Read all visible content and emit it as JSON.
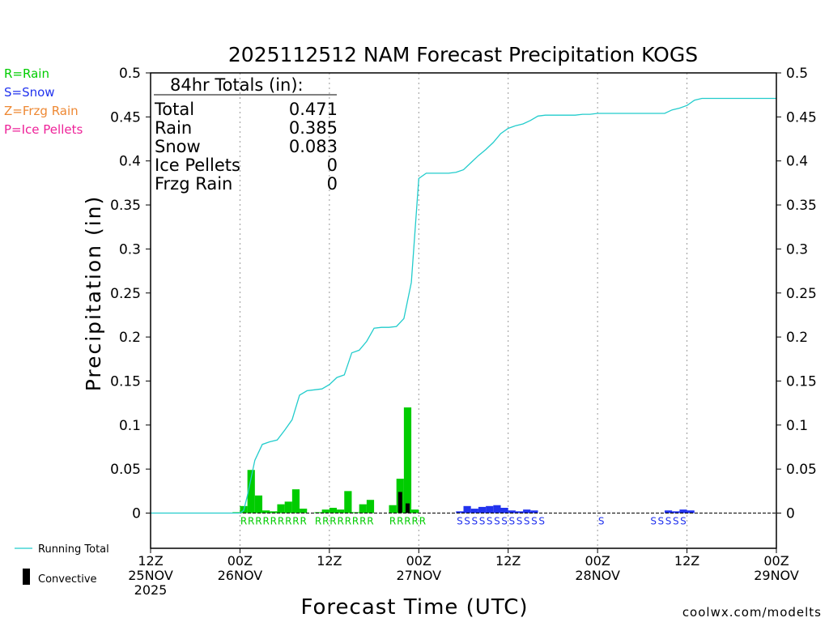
{
  "colors": {
    "rain": "#00cc00",
    "snow": "#2233ee",
    "frzg": "#ee8833",
    "ice": "#ee2299",
    "total": "#22cccc",
    "convective": "#000000",
    "credit": "#dd2222"
  },
  "chart_data": {
    "type": "bar",
    "title": "2025112512 NAM Forecast Precipitation KOGS",
    "ylabel": "Precipitation (in)",
    "xlabel": "Forecast Time (UTC)",
    "ylim": [
      -0.04,
      0.5
    ],
    "xlim_hours": [
      0,
      84
    ],
    "yticks": [
      {
        "v": 0.5,
        "label": "0.5"
      },
      {
        "v": 0.45,
        "label": "0.45"
      },
      {
        "v": 0.4,
        "label": "0.4"
      },
      {
        "v": 0.35,
        "label": "0.35"
      },
      {
        "v": 0.3,
        "label": "0.3"
      },
      {
        "v": 0.25,
        "label": "0.25"
      },
      {
        "v": 0.2,
        "label": "0.2"
      },
      {
        "v": 0.15,
        "label": "0.15"
      },
      {
        "v": 0.1,
        "label": "0.1"
      },
      {
        "v": 0.05,
        "label": "0.05"
      },
      {
        "v": 0,
        "label": "0"
      }
    ],
    "xticks": [
      {
        "h": 0,
        "lines": [
          "12Z",
          "25NOV",
          "2025"
        ]
      },
      {
        "h": 12,
        "lines": [
          "00Z",
          "26NOV"
        ]
      },
      {
        "h": 24,
        "lines": [
          "12Z"
        ]
      },
      {
        "h": 36,
        "lines": [
          "00Z",
          "27NOV"
        ]
      },
      {
        "h": 48,
        "lines": [
          "12Z"
        ]
      },
      {
        "h": 60,
        "lines": [
          "00Z",
          "28NOV"
        ]
      },
      {
        "h": 72,
        "lines": [
          "12Z"
        ]
      },
      {
        "h": 84,
        "lines": [
          "00Z",
          "29NOV"
        ]
      }
    ],
    "legend_left": [
      {
        "label": "R=Rain",
        "color": "#00cc00"
      },
      {
        "label": "S=Snow",
        "color": "#2233ee"
      },
      {
        "label": "Z=Frzg Rain",
        "color": "#ee8833"
      },
      {
        "label": "P=Ice Pellets",
        "color": "#ee2299"
      }
    ],
    "legend_bottom": [
      {
        "label": "Running Total"
      },
      {
        "label": "Convective"
      }
    ],
    "totals": {
      "header": "84hr Totals (in):",
      "rows": [
        {
          "label": "Total",
          "value": "0.471"
        },
        {
          "label": "Rain",
          "value": "0.385"
        },
        {
          "label": "Snow",
          "value": "0.083"
        },
        {
          "label": "Ice Pellets",
          "value": "0"
        },
        {
          "label": "Frzg Rain",
          "value": "0"
        }
      ]
    },
    "hourly_precip": [
      {
        "h": 12,
        "type": "rain",
        "v": 0.001
      },
      {
        "h": 13,
        "type": "rain",
        "v": 0.008
      },
      {
        "h": 14,
        "type": "rain",
        "v": 0.049
      },
      {
        "h": 15,
        "type": "rain",
        "v": 0.02
      },
      {
        "h": 16,
        "type": "rain",
        "v": 0.003
      },
      {
        "h": 17,
        "type": "rain",
        "v": 0.002
      },
      {
        "h": 18,
        "type": "rain",
        "v": 0.01
      },
      {
        "h": 19,
        "type": "rain",
        "v": 0.013
      },
      {
        "h": 20,
        "type": "rain",
        "v": 0.027
      },
      {
        "h": 21,
        "type": "rain",
        "v": 0.005
      },
      {
        "h": 23,
        "type": "rain",
        "v": 0.001
      },
      {
        "h": 24,
        "type": "rain",
        "v": 0.004
      },
      {
        "h": 25,
        "type": "rain",
        "v": 0.006
      },
      {
        "h": 26,
        "type": "rain",
        "v": 0.004
      },
      {
        "h": 27,
        "type": "rain",
        "v": 0.025
      },
      {
        "h": 28,
        "type": "rain",
        "v": 0.001
      },
      {
        "h": 29,
        "type": "rain",
        "v": 0.01
      },
      {
        "h": 30,
        "type": "rain",
        "v": 0.015
      },
      {
        "h": 33,
        "type": "rain",
        "v": 0.009
      },
      {
        "h": 34,
        "type": "rain",
        "v": 0.039
      },
      {
        "h": 35,
        "type": "rain",
        "v": 0.12
      },
      {
        "h": 36,
        "type": "rain",
        "v": 0.004
      },
      {
        "h": 42,
        "type": "snow",
        "v": 0.002
      },
      {
        "h": 43,
        "type": "snow",
        "v": 0.008
      },
      {
        "h": 44,
        "type": "snow",
        "v": 0.005
      },
      {
        "h": 45,
        "type": "snow",
        "v": 0.007
      },
      {
        "h": 46,
        "type": "snow",
        "v": 0.008
      },
      {
        "h": 47,
        "type": "snow",
        "v": 0.009
      },
      {
        "h": 48,
        "type": "snow",
        "v": 0.006
      },
      {
        "h": 49,
        "type": "snow",
        "v": 0.003
      },
      {
        "h": 50,
        "type": "snow",
        "v": 0.002
      },
      {
        "h": 51,
        "type": "snow",
        "v": 0.004
      },
      {
        "h": 52,
        "type": "snow",
        "v": 0.003
      },
      {
        "h": 70,
        "type": "snow",
        "v": 0.003
      },
      {
        "h": 71,
        "type": "snow",
        "v": 0.002
      },
      {
        "h": 72,
        "type": "snow",
        "v": 0.004
      },
      {
        "h": 73,
        "type": "snow",
        "v": 0.003
      }
    ],
    "convective": [
      {
        "h": 34,
        "v": 0.024
      },
      {
        "h": 35,
        "v": 0.011
      }
    ],
    "running_total": [
      [
        0,
        0
      ],
      [
        12,
        0
      ],
      [
        12.5,
        0.003
      ],
      [
        13,
        0.02
      ],
      [
        14,
        0.06
      ],
      [
        15,
        0.078
      ],
      [
        16,
        0.081
      ],
      [
        17,
        0.083
      ],
      [
        18,
        0.094
      ],
      [
        19,
        0.106
      ],
      [
        20,
        0.134
      ],
      [
        21,
        0.139
      ],
      [
        22,
        0.14
      ],
      [
        23,
        0.141
      ],
      [
        24,
        0.146
      ],
      [
        25,
        0.154
      ],
      [
        26,
        0.157
      ],
      [
        27,
        0.182
      ],
      [
        28,
        0.185
      ],
      [
        29,
        0.195
      ],
      [
        30,
        0.21
      ],
      [
        31,
        0.211
      ],
      [
        32,
        0.211
      ],
      [
        33,
        0.212
      ],
      [
        34,
        0.221
      ],
      [
        35,
        0.262
      ],
      [
        36,
        0.38
      ],
      [
        37,
        0.386
      ],
      [
        38,
        0.386
      ],
      [
        39,
        0.386
      ],
      [
        40,
        0.386
      ],
      [
        41,
        0.387
      ],
      [
        42,
        0.39
      ],
      [
        43,
        0.398
      ],
      [
        44,
        0.406
      ],
      [
        45,
        0.413
      ],
      [
        46,
        0.421
      ],
      [
        47,
        0.431
      ],
      [
        48,
        0.437
      ],
      [
        49,
        0.44
      ],
      [
        50,
        0.442
      ],
      [
        51,
        0.446
      ],
      [
        52,
        0.451
      ],
      [
        53,
        0.452
      ],
      [
        54,
        0.452
      ],
      [
        55,
        0.452
      ],
      [
        56,
        0.452
      ],
      [
        57,
        0.452
      ],
      [
        58,
        0.453
      ],
      [
        59,
        0.453
      ],
      [
        60,
        0.454
      ],
      [
        61,
        0.454
      ],
      [
        62,
        0.454
      ],
      [
        63,
        0.454
      ],
      [
        64,
        0.454
      ],
      [
        65,
        0.454
      ],
      [
        66,
        0.454
      ],
      [
        67,
        0.454
      ],
      [
        68,
        0.454
      ],
      [
        69,
        0.454
      ],
      [
        70,
        0.458
      ],
      [
        71,
        0.46
      ],
      [
        72,
        0.463
      ],
      [
        73,
        0.469
      ],
      [
        74,
        0.471
      ],
      [
        84,
        0.471
      ]
    ],
    "type_labels": [
      {
        "text": "RRRRRRRRR",
        "color": "#00cc00",
        "start_h": 12.5
      },
      {
        "text": "RRRRRRRR",
        "color": "#00cc00",
        "start_h": 22.5
      },
      {
        "text": "RRRRR",
        "color": "#00cc00",
        "start_h": 32.5
      },
      {
        "text": "SSSSSSSSSSSS",
        "color": "#2233ee",
        "start_h": 41.5
      },
      {
        "text": "S",
        "color": "#2233ee",
        "start_h": 60.5
      },
      {
        "text": "SSSSS",
        "color": "#2233ee",
        "start_h": 67.5
      }
    ]
  },
  "credit": "coolwx.com/modelts"
}
